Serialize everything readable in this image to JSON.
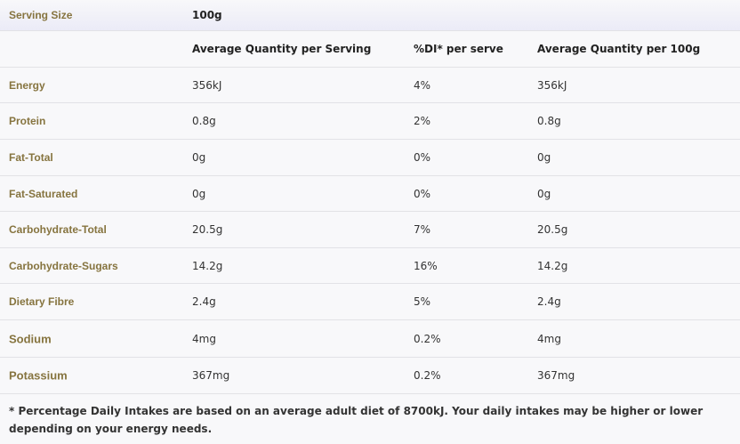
{
  "serving_size": {
    "label": "Serving Size",
    "value": "100g"
  },
  "table": {
    "headers": [
      "Average Quantity per Serving",
      "%DI* per serve",
      "Average Quantity per 100g"
    ],
    "rows": [
      [
        "Energy",
        "356kJ",
        "4%",
        "356kJ"
      ],
      [
        "Protein",
        "0.8g",
        "2%",
        "0.8g"
      ],
      [
        "Fat-Total",
        "0g",
        "0%",
        "0g"
      ],
      [
        "Fat-Saturated",
        "0g",
        "0%",
        "0g"
      ],
      [
        "Carbohydrate-Total",
        "20.5g",
        "7%",
        "20.5g"
      ],
      [
        "Carbohydrate-Sugars",
        "14.2g",
        "16%",
        "14.2g"
      ],
      [
        "Dietary Fibre",
        "2.4g",
        "5%",
        "2.4g"
      ],
      [
        "Sodium",
        "4mg",
        "0.2%",
        "4mg"
      ],
      [
        "Potassium",
        "367mg",
        "0.2%",
        "367mg"
      ]
    ]
  },
  "footnote": "* Percentage Daily Intakes are based on an average adult diet of 8700kJ.  Your daily intakes may be higher or lower depending on your energy needs."
}
